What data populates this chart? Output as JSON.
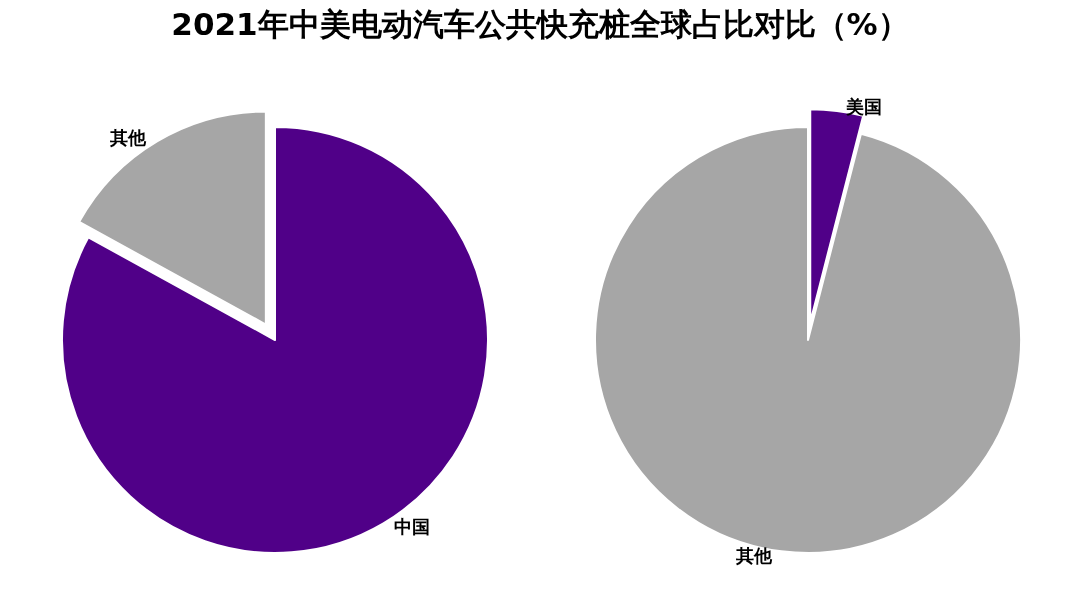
{
  "chart_data": [
    {
      "type": "pie",
      "title": "2021年中美电动汽车公共快充桩全球占比对比（%）",
      "categories": [
        "中国",
        "其他"
      ],
      "values": [
        83,
        17
      ],
      "colors": [
        "#500088",
        "#a6a6a6"
      ]
    },
    {
      "type": "pie",
      "categories": [
        "美国",
        "其他"
      ],
      "values": [
        4,
        96
      ],
      "colors": [
        "#500088",
        "#a6a6a6"
      ]
    }
  ]
}
